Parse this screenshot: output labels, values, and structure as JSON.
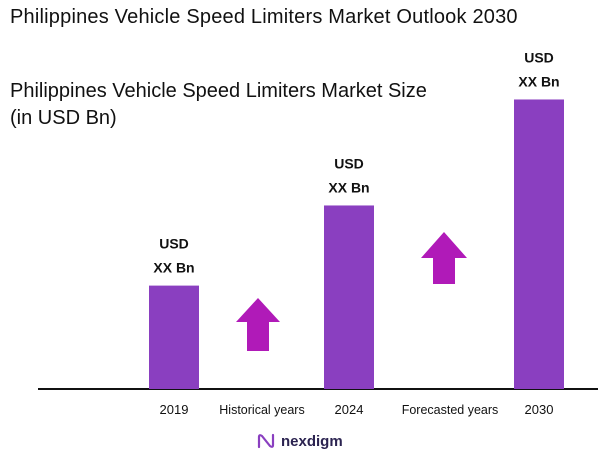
{
  "header": {
    "title": "Philippines Vehicle Speed Limiters Market Outlook 2030",
    "subtitle_line1": "Philippines Vehicle Speed Limiters Market Size",
    "subtitle_line2": "(in USD Bn)"
  },
  "chart_data": {
    "type": "bar",
    "categories": [
      "2019",
      "2024",
      "2030"
    ],
    "values": [
      2.0,
      3.55,
      5.6
    ],
    "value_labels": [
      [
        "USD",
        "XX Bn"
      ],
      [
        "USD",
        "XX Bn"
      ],
      [
        "USD",
        "XX Bn"
      ]
    ],
    "between_labels": [
      "Historical years",
      "Forecasted years"
    ],
    "bar_color": "#8a3fc0",
    "arrow_color": "#b01ab8",
    "grid": false,
    "legend": "none"
  },
  "brand": {
    "name": "nexdigm",
    "logo_icon": "nexdigm-logo-icon"
  }
}
